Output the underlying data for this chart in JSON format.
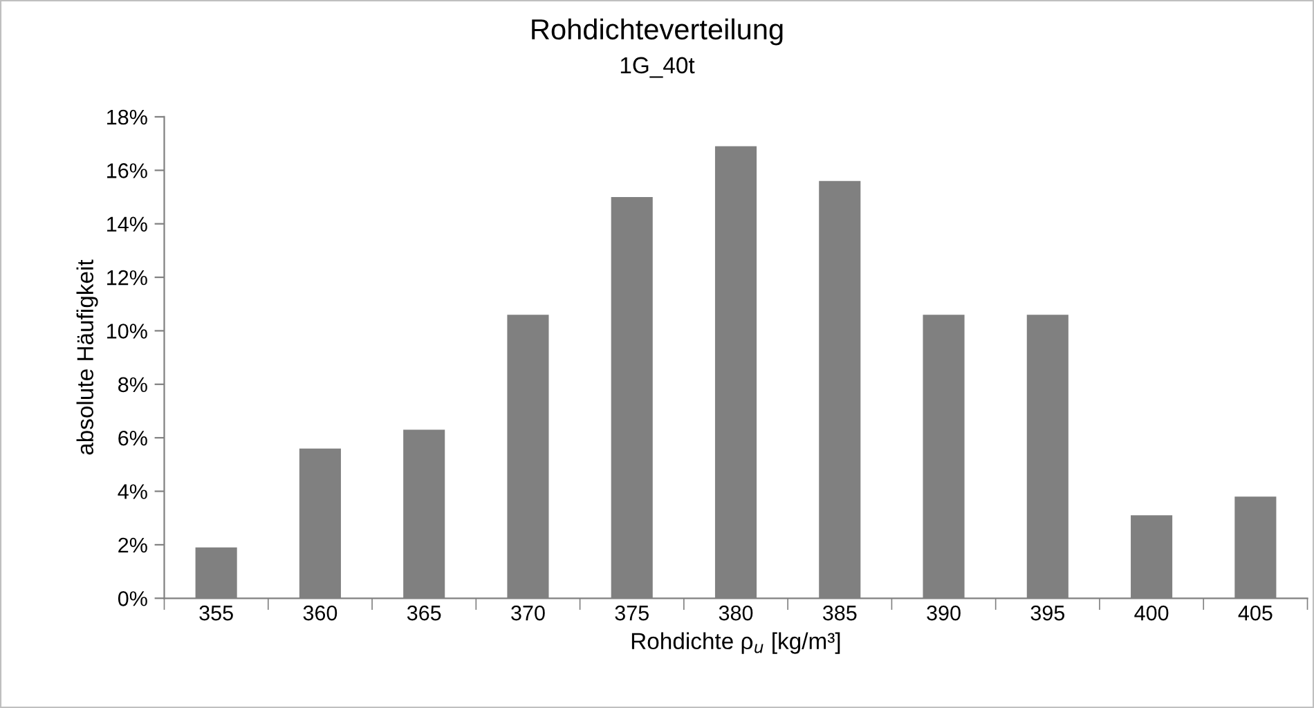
{
  "chart_data": {
    "type": "bar",
    "title": "Rohdichteverteilung",
    "subtitle": "1G_40t",
    "xlabel": "Rohdichte ρ$_{u}$ [kg/m³]",
    "ylabel": "absolute Häufigkeit",
    "categories": [
      "355",
      "360",
      "365",
      "370",
      "375",
      "380",
      "385",
      "390",
      "395",
      "400",
      "405"
    ],
    "values": [
      1.9,
      5.6,
      6.3,
      10.6,
      15.0,
      16.9,
      15.6,
      10.6,
      10.6,
      3.1,
      3.8
    ],
    "color": "#808080",
    "ylim": [
      0,
      18
    ],
    "yticks": [
      {
        "value": 0,
        "label": "0%"
      },
      {
        "value": 2,
        "label": "2%"
      },
      {
        "value": 4,
        "label": "4%"
      },
      {
        "value": 6,
        "label": "6%"
      },
      {
        "value": 8,
        "label": "8%"
      },
      {
        "value": 10,
        "label": "10%"
      },
      {
        "value": 12,
        "label": "12%"
      },
      {
        "value": 14,
        "label": "14%"
      },
      {
        "value": 16,
        "label": "16%"
      },
      {
        "value": 18,
        "label": "18%"
      }
    ],
    "grid": false,
    "legend": false
  }
}
